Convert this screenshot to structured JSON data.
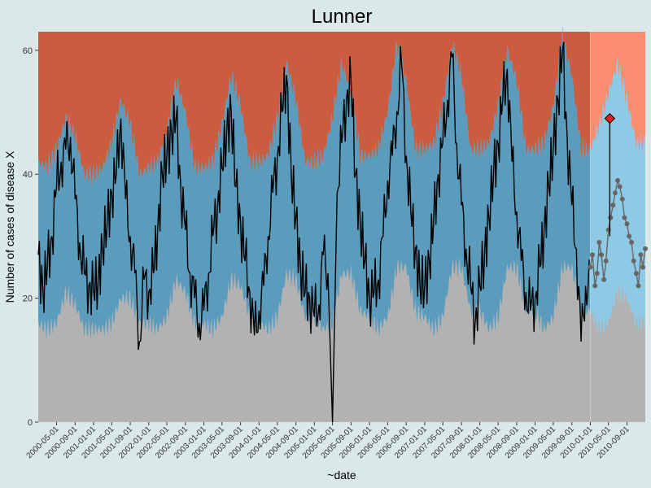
{
  "chart_data": {
    "type": "area",
    "title": "Lunner",
    "xlabel": "~date",
    "ylabel": "Number of cases of disease X",
    "x_range": [
      "2000-01-01",
      "2010-12-31"
    ],
    "ylim": [
      0,
      63
    ],
    "y_ticks": [
      0,
      20,
      40,
      60
    ],
    "x_tick_labels": [
      "2000-05-01",
      "2000-09-01",
      "2001-01-01",
      "2001-05-01",
      "2001-09-01",
      "2002-01-01",
      "2002-05-01",
      "2002-09-01",
      "2003-01-01",
      "2003-05-01",
      "2003-09-01",
      "2004-01-01",
      "2004-05-01",
      "2004-09-01",
      "2005-01-01",
      "2005-05-01",
      "2005-09-01",
      "2006-01-01",
      "2006-05-01",
      "2006-09-01",
      "2007-01-01",
      "2007-05-01",
      "2007-09-01",
      "2008-01-01",
      "2008-05-01",
      "2008-09-01",
      "2009-01-01",
      "2009-05-01",
      "2009-09-01",
      "2010-01-01",
      "2010-05-01",
      "2010-09-01"
    ],
    "prediction_start": "2010-01-01",
    "colors": {
      "background": "#dbe8e8",
      "low_zone": "#b2b2b2",
      "normal_zone": "#5b9cbd",
      "normal_zone_prediction": "#8ecae6",
      "high_zone": "#cc5c40",
      "high_zone_prediction": "#fa8c70",
      "observed_line": "#000000",
      "prediction_points": "#666666",
      "alert_marker": "#e21b1b"
    },
    "bands": {
      "lower_threshold": {
        "x": [
          "2000-01-01",
          "2000-03-01",
          "2000-05-01",
          "2000-07-01",
          "2000-09-01",
          "2000-11-01",
          "2001-01-01",
          "2001-03-01",
          "2001-05-01",
          "2001-07-01",
          "2001-09-01",
          "2001-11-01",
          "2002-01-01",
          "2002-03-01",
          "2002-05-01",
          "2002-07-01",
          "2002-09-01",
          "2002-11-01",
          "2003-01-01",
          "2003-03-01",
          "2003-05-01",
          "2003-07-01",
          "2003-09-01",
          "2003-11-01",
          "2004-01-01",
          "2004-03-01",
          "2004-05-01",
          "2004-07-01",
          "2004-09-01",
          "2004-11-01",
          "2005-01-01",
          "2005-03-01",
          "2005-05-01",
          "2005-07-01",
          "2005-09-01",
          "2005-11-01",
          "2006-01-01",
          "2006-03-01",
          "2006-05-01",
          "2006-07-01",
          "2006-09-01",
          "2006-11-01",
          "2007-01-01",
          "2007-03-01",
          "2007-05-01",
          "2007-07-01",
          "2007-09-01",
          "2007-11-01",
          "2008-01-01",
          "2008-03-01",
          "2008-05-01",
          "2008-07-01",
          "2008-09-01",
          "2008-11-01",
          "2009-01-01",
          "2009-03-01",
          "2009-05-01",
          "2009-07-01",
          "2009-09-01",
          "2009-11-01",
          "2010-01-01",
          "2010-03-01",
          "2010-05-01",
          "2010-07-01",
          "2010-09-01",
          "2010-11-01",
          "2010-12-31"
        ],
        "y": [
          16,
          15,
          16,
          21,
          19,
          15,
          15,
          15,
          16,
          20,
          20,
          16,
          16,
          15,
          17,
          23,
          21,
          16,
          16,
          15,
          17,
          23,
          22,
          17,
          16,
          15,
          17,
          24,
          23,
          17,
          17,
          15,
          16,
          24,
          24,
          18,
          17,
          15,
          17,
          25,
          25,
          18,
          17,
          15,
          17,
          25,
          25,
          18,
          18,
          15,
          17,
          25,
          25,
          18,
          18,
          15,
          17,
          25,
          25,
          18,
          18,
          15,
          16,
          21,
          20,
          16,
          16
        ]
      },
      "upper_threshold": {
        "x": [
          "2000-01-01",
          "2000-03-01",
          "2000-05-01",
          "2000-07-01",
          "2000-09-01",
          "2000-11-01",
          "2001-01-01",
          "2001-03-01",
          "2001-05-01",
          "2001-07-01",
          "2001-09-01",
          "2001-11-01",
          "2002-01-01",
          "2002-03-01",
          "2002-05-01",
          "2002-07-01",
          "2002-09-01",
          "2002-11-01",
          "2003-01-01",
          "2003-03-01",
          "2003-05-01",
          "2003-07-01",
          "2003-09-01",
          "2003-11-01",
          "2004-01-01",
          "2004-03-01",
          "2004-05-01",
          "2004-07-01",
          "2004-09-01",
          "2004-11-01",
          "2005-01-01",
          "2005-03-01",
          "2005-05-01",
          "2005-07-01",
          "2005-09-01",
          "2005-11-01",
          "2006-01-01",
          "2006-03-01",
          "2006-05-01",
          "2006-07-01",
          "2006-09-01",
          "2006-11-01",
          "2007-01-01",
          "2007-03-01",
          "2007-05-01",
          "2007-07-01",
          "2007-09-01",
          "2007-11-01",
          "2008-01-01",
          "2008-03-01",
          "2008-05-01",
          "2008-07-01",
          "2008-09-01",
          "2008-11-01",
          "2009-01-01",
          "2009-03-01",
          "2009-05-01",
          "2009-07-01",
          "2009-09-01",
          "2009-11-01",
          "2010-01-01",
          "2010-03-01",
          "2010-05-01",
          "2010-07-01",
          "2010-09-01",
          "2010-11-01",
          "2010-12-31"
        ],
        "y": [
          42,
          41,
          44,
          49,
          46,
          40,
          40,
          41,
          45,
          52,
          48,
          40,
          41,
          42,
          47,
          55,
          50,
          41,
          41,
          42,
          48,
          56,
          51,
          42,
          42,
          43,
          49,
          58,
          52,
          42,
          42,
          43,
          49,
          58,
          53,
          43,
          43,
          44,
          50,
          61,
          55,
          44,
          44,
          45,
          51,
          61,
          56,
          44,
          44,
          45,
          51,
          60,
          55,
          44,
          44,
          45,
          51,
          62,
          56,
          44,
          44,
          48,
          53,
          58,
          52,
          45,
          45
        ]
      }
    },
    "series": [
      {
        "x": [
          "2000-01-01",
          "2000-02-01",
          "2000-03-01",
          "2000-04-01",
          "2000-05-01",
          "2000-06-01",
          "2000-07-01",
          "2000-08-01",
          "2000-09-01",
          "2000-10-01",
          "2000-11-01",
          "2000-12-01",
          "2001-01-01",
          "2001-02-01",
          "2001-03-01",
          "2001-04-01",
          "2001-05-01",
          "2001-06-01",
          "2001-07-01",
          "2001-08-01",
          "2001-09-01",
          "2001-10-01",
          "2001-11-01",
          "2001-12-01",
          "2002-01-01",
          "2002-02-01",
          "2002-03-01",
          "2002-04-01",
          "2002-05-01",
          "2002-06-01",
          "2002-07-01",
          "2002-08-01",
          "2002-09-01",
          "2002-10-01",
          "2002-11-01",
          "2002-12-01",
          "2003-01-01",
          "2003-02-01",
          "2003-03-01",
          "2003-04-01",
          "2003-05-01",
          "2003-06-01",
          "2003-07-01",
          "2003-08-01",
          "2003-09-01",
          "2003-10-01",
          "2003-11-01",
          "2003-12-01",
          "2004-01-01",
          "2004-02-01",
          "2004-03-01",
          "2004-04-01",
          "2004-05-01",
          "2004-06-01",
          "2004-07-01",
          "2004-08-01",
          "2004-09-01",
          "2004-10-01",
          "2004-11-01",
          "2004-12-01",
          "2005-01-01",
          "2005-02-01",
          "2005-03-01",
          "2005-04-01",
          "2005-05-01",
          "2005-06-01",
          "2005-07-01",
          "2005-08-01",
          "2005-09-01",
          "2005-10-01",
          "2005-11-01",
          "2005-12-01",
          "2006-01-01",
          "2006-02-01",
          "2006-03-01",
          "2006-04-01",
          "2006-05-01",
          "2006-06-01",
          "2006-07-01",
          "2006-08-01",
          "2006-09-01",
          "2006-10-01",
          "2006-11-01",
          "2006-12-01",
          "2007-01-01",
          "2007-02-01",
          "2007-03-01",
          "2007-04-01",
          "2007-05-01",
          "2007-06-01",
          "2007-07-01",
          "2007-08-01",
          "2007-09-01",
          "2007-10-01",
          "2007-11-01",
          "2007-12-01",
          "2008-01-01",
          "2008-02-01",
          "2008-03-01",
          "2008-04-01",
          "2008-05-01",
          "2008-06-01",
          "2008-07-01",
          "2008-08-01",
          "2008-09-01",
          "2008-10-01",
          "2008-11-01",
          "2008-12-01",
          "2009-01-01",
          "2009-02-01",
          "2009-03-01",
          "2009-04-01",
          "2009-05-01",
          "2009-06-01",
          "2009-07-01",
          "2009-08-01",
          "2009-09-01",
          "2009-10-01",
          "2009-11-01",
          "2009-12-01"
        ],
        "y": [
          27,
          21,
          25,
          30,
          38,
          42,
          44,
          46,
          36,
          29,
          24,
          22,
          21,
          23,
          28,
          32,
          37,
          40,
          49,
          36,
          30,
          24,
          13,
          23,
          21,
          24,
          31,
          40,
          43,
          47,
          49,
          38,
          31,
          24,
          20,
          16,
          18,
          24,
          30,
          35,
          41,
          47,
          50,
          38,
          32,
          26,
          21,
          14,
          18,
          22,
          30,
          37,
          43,
          50,
          56,
          40,
          33,
          25,
          21,
          20,
          17,
          19,
          27,
          24,
          0,
          37,
          45,
          52,
          55,
          40,
          32,
          26,
          20,
          21,
          23,
          30,
          39,
          43,
          50,
          58,
          43,
          34,
          28,
          22,
          22,
          26,
          32,
          40,
          45,
          52,
          59,
          45,
          35,
          28,
          22,
          16,
          22,
          27,
          33,
          40,
          45,
          52,
          57,
          42,
          34,
          26,
          21,
          18,
          20,
          25,
          31,
          38,
          44,
          52,
          60,
          46,
          35,
          28,
          13,
          22
        ]
      }
    ],
    "prediction_points": {
      "x": [
        "2010-01-01",
        "2010-01-15",
        "2010-02-01",
        "2010-02-15",
        "2010-03-01",
        "2010-03-15",
        "2010-04-01",
        "2010-04-15",
        "2010-05-01",
        "2010-05-15",
        "2010-06-01",
        "2010-06-15",
        "2010-07-01",
        "2010-07-15",
        "2010-08-01",
        "2010-08-15",
        "2010-09-01",
        "2010-09-15",
        "2010-10-01",
        "2010-10-15",
        "2010-11-01",
        "2010-11-15",
        "2010-12-01",
        "2010-12-15",
        "2010-12-31"
      ],
      "y": [
        25,
        27,
        22,
        24,
        29,
        27,
        23,
        26,
        31,
        33,
        35,
        37,
        39,
        38,
        36,
        33,
        32,
        30,
        29,
        26,
        24,
        22,
        27,
        25,
        28
      ]
    },
    "alert_point": {
      "x": "2010-05-10",
      "y": 49
    }
  }
}
